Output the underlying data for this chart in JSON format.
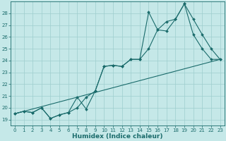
{
  "title": "",
  "xlabel": "Humidex (Indice chaleur)",
  "bg_color": "#c5e8e8",
  "grid_color": "#9ecece",
  "line_color": "#1a6b6b",
  "xlim": [
    -0.5,
    23.5
  ],
  "ylim": [
    18.5,
    29.0
  ],
  "xticks": [
    0,
    1,
    2,
    3,
    4,
    5,
    6,
    7,
    8,
    9,
    10,
    11,
    12,
    13,
    14,
    15,
    16,
    17,
    18,
    19,
    20,
    21,
    22,
    23
  ],
  "yticks": [
    19,
    20,
    21,
    22,
    23,
    24,
    25,
    26,
    27,
    28
  ],
  "line1_x": [
    0,
    1,
    2,
    3,
    4,
    5,
    6,
    7,
    8,
    9,
    10,
    11,
    12,
    13,
    14,
    15,
    16,
    17,
    18,
    19,
    20,
    21,
    22,
    23
  ],
  "line1_y": [
    19.5,
    19.7,
    19.6,
    20.0,
    19.1,
    19.4,
    19.6,
    20.9,
    19.9,
    21.4,
    23.5,
    23.6,
    23.5,
    24.1,
    24.1,
    28.1,
    26.6,
    27.3,
    27.5,
    28.8,
    27.5,
    26.2,
    25.0,
    24.1
  ],
  "line2_x": [
    0,
    1,
    2,
    3,
    4,
    5,
    6,
    7,
    8,
    9,
    10,
    11,
    12,
    13,
    14,
    15,
    16,
    17,
    18,
    19,
    20,
    21,
    22,
    23
  ],
  "line2_y": [
    19.5,
    19.7,
    19.6,
    20.0,
    19.1,
    19.4,
    19.6,
    20.0,
    20.9,
    21.4,
    23.5,
    23.6,
    23.5,
    24.1,
    24.1,
    25.0,
    26.6,
    26.5,
    27.5,
    28.8,
    26.2,
    25.0,
    24.1,
    24.1
  ],
  "line3_x": [
    0,
    23
  ],
  "line3_y": [
    19.5,
    24.1
  ],
  "marker": "D",
  "markersize": 2.0,
  "linewidth": 0.8,
  "tick_fontsize": 5.0,
  "xlabel_fontsize": 6.5
}
